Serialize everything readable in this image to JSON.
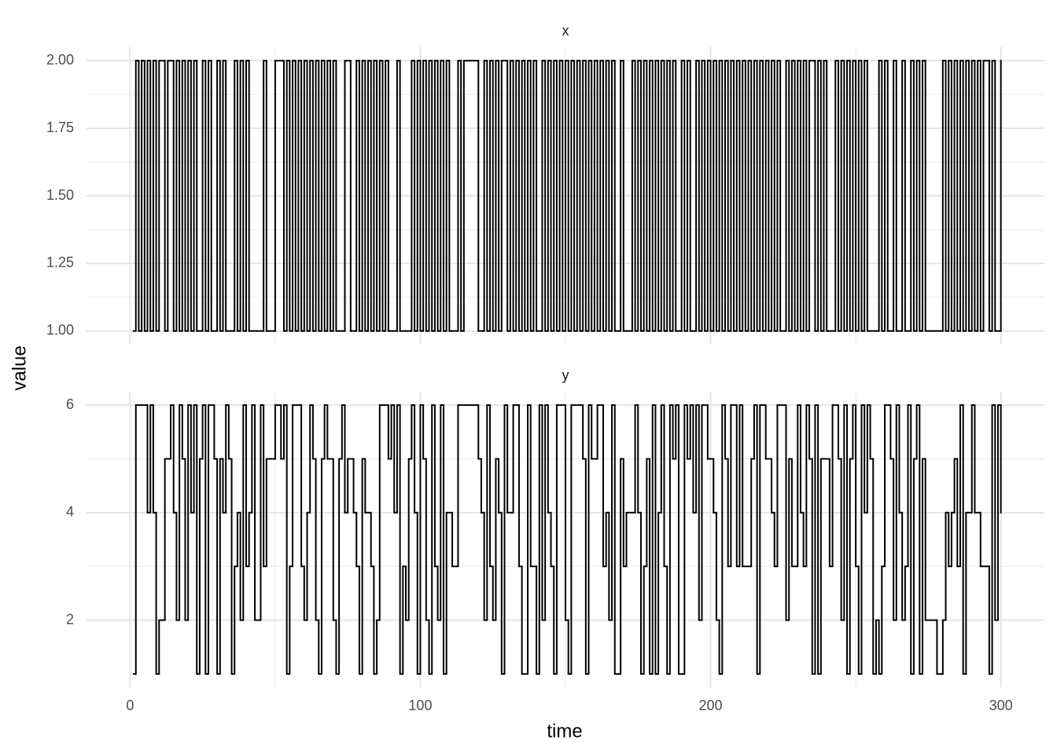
{
  "chart_data": {
    "type": "step",
    "xlabel": "time",
    "ylabel": "value",
    "color": "#000000",
    "grid": true,
    "x": [
      1,
      2,
      3,
      4,
      5,
      6,
      7,
      8,
      9,
      10,
      11,
      12,
      13,
      14,
      15,
      16,
      17,
      18,
      19,
      20,
      21,
      22,
      23,
      24,
      25,
      26,
      27,
      28,
      29,
      30,
      31,
      32,
      33,
      34,
      35,
      36,
      37,
      38,
      39,
      40,
      41,
      42,
      43,
      44,
      45,
      46,
      47,
      48,
      49,
      50,
      51,
      52,
      53,
      54,
      55,
      56,
      57,
      58,
      59,
      60,
      61,
      62,
      63,
      64,
      65,
      66,
      67,
      68,
      69,
      70,
      71,
      72,
      73,
      74,
      75,
      76,
      77,
      78,
      79,
      80,
      81,
      82,
      83,
      84,
      85,
      86,
      87,
      88,
      89,
      90,
      91,
      92,
      93,
      94,
      95,
      96,
      97,
      98,
      99,
      100,
      101,
      102,
      103,
      104,
      105,
      106,
      107,
      108,
      109,
      110,
      111,
      112,
      113,
      114,
      115,
      116,
      117,
      118,
      119,
      120,
      121,
      122,
      123,
      124,
      125,
      126,
      127,
      128,
      129,
      130,
      131,
      132,
      133,
      134,
      135,
      136,
      137,
      138,
      139,
      140,
      141,
      142,
      143,
      144,
      145,
      146,
      147,
      148,
      149,
      150,
      151,
      152,
      153,
      154,
      155,
      156,
      157,
      158,
      159,
      160,
      161,
      162,
      163,
      164,
      165,
      166,
      167,
      168,
      169,
      170,
      171,
      172,
      173,
      174,
      175,
      176,
      177,
      178,
      179,
      180,
      181,
      182,
      183,
      184,
      185,
      186,
      187,
      188,
      189,
      190,
      191,
      192,
      193,
      194,
      195,
      196,
      197,
      198,
      199,
      200,
      201,
      202,
      203,
      204,
      205,
      206,
      207,
      208,
      209,
      210,
      211,
      212,
      213,
      214,
      215,
      216,
      217,
      218,
      219,
      220,
      221,
      222,
      223,
      224,
      225,
      226,
      227,
      228,
      229,
      230,
      231,
      232,
      233,
      234,
      235,
      236,
      237,
      238,
      239,
      240,
      241,
      242,
      243,
      244,
      245,
      246,
      247,
      248,
      249,
      250,
      251,
      252,
      253,
      254,
      255,
      256,
      257,
      258,
      259,
      260,
      261,
      262,
      263,
      264,
      265,
      266,
      267,
      268,
      269,
      270,
      271,
      272,
      273,
      274,
      275,
      276,
      277,
      278,
      279,
      280,
      281,
      282,
      283,
      284,
      285,
      286,
      287,
      288,
      289,
      290,
      291,
      292,
      293,
      294,
      295,
      296,
      297,
      298,
      299,
      300
    ],
    "xlim": [
      -15,
      315
    ],
    "xticks": [
      0,
      100,
      200,
      300
    ],
    "panels": [
      {
        "title": "x",
        "ylim": [
          0.95,
          2.05
        ],
        "yticks": [
          {
            "value": 1,
            "label": "1.00"
          },
          {
            "value": 1.25,
            "label": "1.25"
          },
          {
            "value": 1.5,
            "label": "1.50"
          },
          {
            "value": 1.75,
            "label": "1.75"
          },
          {
            "value": 2,
            "label": "2.00"
          }
        ],
        "values": [
          1,
          2,
          1,
          2,
          1,
          2,
          1,
          2,
          1,
          2,
          2,
          1,
          2,
          2,
          1,
          2,
          1,
          2,
          1,
          2,
          1,
          2,
          1,
          1,
          2,
          1,
          2,
          1,
          1,
          2,
          1,
          2,
          1,
          1,
          1,
          2,
          1,
          2,
          1,
          2,
          1,
          1,
          1,
          1,
          1,
          2,
          1,
          1,
          1,
          2,
          2,
          2,
          1,
          2,
          1,
          2,
          1,
          2,
          1,
          2,
          1,
          2,
          1,
          2,
          1,
          2,
          1,
          2,
          1,
          2,
          1,
          1,
          1,
          2,
          2,
          1,
          1,
          2,
          1,
          2,
          1,
          2,
          1,
          2,
          1,
          2,
          1,
          2,
          1,
          1,
          1,
          2,
          1,
          1,
          1,
          1,
          2,
          1,
          2,
          1,
          2,
          1,
          2,
          1,
          2,
          1,
          2,
          1,
          2,
          1,
          1,
          1,
          2,
          1,
          2,
          2,
          2,
          2,
          2,
          1,
          1,
          2,
          1,
          2,
          1,
          2,
          1,
          2,
          2,
          1,
          2,
          1,
          2,
          1,
          2,
          1,
          2,
          1,
          2,
          1,
          1,
          2,
          1,
          2,
          1,
          2,
          1,
          2,
          1,
          2,
          1,
          2,
          1,
          2,
          1,
          2,
          1,
          2,
          1,
          2,
          1,
          2,
          1,
          2,
          1,
          2,
          1,
          1,
          2,
          1,
          1,
          1,
          2,
          1,
          2,
          1,
          2,
          1,
          2,
          1,
          2,
          1,
          2,
          1,
          2,
          1,
          2,
          1,
          1,
          2,
          1,
          2,
          1,
          1,
          2,
          1,
          2,
          1,
          2,
          1,
          2,
          1,
          2,
          1,
          2,
          1,
          2,
          1,
          2,
          1,
          2,
          1,
          2,
          1,
          2,
          1,
          2,
          1,
          2,
          1,
          2,
          1,
          2,
          1,
          1,
          2,
          1,
          2,
          1,
          2,
          1,
          2,
          1,
          2,
          2,
          1,
          2,
          1,
          2,
          1,
          1,
          1,
          2,
          1,
          2,
          1,
          2,
          1,
          2,
          1,
          2,
          1,
          2,
          1,
          1,
          1,
          1,
          2,
          1,
          2,
          1,
          1,
          2,
          1,
          1,
          2,
          1,
          1,
          2,
          1,
          2,
          1,
          2,
          1,
          1,
          1,
          1,
          1,
          1,
          2,
          1,
          2,
          1,
          2,
          1,
          2,
          1,
          2,
          1,
          2,
          1,
          2,
          1,
          2,
          2,
          1,
          2,
          1,
          1,
          2
        ]
      },
      {
        "title": "y",
        "ylim": [
          0.75,
          6.25
        ],
        "yticks": [
          2,
          4,
          6
        ],
        "values": [
          1,
          6,
          6,
          6,
          6,
          4,
          6,
          4,
          1,
          2,
          2,
          5,
          5,
          6,
          4,
          2,
          6,
          5,
          2,
          6,
          4,
          6,
          1,
          5,
          6,
          1,
          6,
          6,
          5,
          1,
          5,
          4,
          6,
          5,
          1,
          3,
          4,
          2,
          6,
          3,
          4,
          6,
          2,
          2,
          6,
          3,
          5,
          5,
          5,
          6,
          6,
          5,
          6,
          1,
          3,
          6,
          6,
          6,
          3,
          2,
          4,
          6,
          5,
          2,
          1,
          5,
          6,
          5,
          5,
          2,
          1,
          5,
          6,
          4,
          5,
          5,
          4,
          3,
          1,
          5,
          4,
          4,
          3,
          1,
          2,
          6,
          6,
          6,
          5,
          6,
          4,
          6,
          1,
          3,
          2,
          5,
          6,
          4,
          1,
          6,
          5,
          2,
          1,
          6,
          3,
          2,
          6,
          1,
          4,
          4,
          3,
          3,
          6,
          6,
          6,
          6,
          6,
          6,
          6,
          5,
          4,
          2,
          6,
          3,
          2,
          5,
          4,
          1,
          6,
          4,
          4,
          6,
          6,
          3,
          1,
          1,
          6,
          3,
          3,
          1,
          6,
          2,
          6,
          4,
          3,
          1,
          6,
          6,
          6,
          2,
          1,
          6,
          6,
          6,
          6,
          5,
          1,
          6,
          5,
          5,
          6,
          6,
          3,
          4,
          2,
          6,
          1,
          1,
          5,
          3,
          4,
          4,
          4,
          6,
          4,
          1,
          3,
          5,
          1,
          6,
          1,
          4,
          6,
          3,
          1,
          6,
          5,
          6,
          1,
          1,
          6,
          5,
          6,
          4,
          6,
          2,
          6,
          6,
          5,
          5,
          4,
          2,
          1,
          6,
          5,
          3,
          6,
          6,
          3,
          6,
          3,
          3,
          3,
          5,
          6,
          1,
          6,
          6,
          5,
          5,
          4,
          3,
          6,
          6,
          6,
          2,
          5,
          3,
          3,
          6,
          4,
          3,
          6,
          5,
          1,
          6,
          1,
          5,
          5,
          5,
          3,
          6,
          6,
          5,
          2,
          6,
          1,
          5,
          6,
          3,
          1,
          6,
          4,
          6,
          5,
          1,
          2,
          1,
          3,
          6,
          6,
          5,
          2,
          6,
          4,
          2,
          3,
          6,
          1,
          5,
          6,
          1,
          5,
          2,
          2,
          2,
          2,
          1,
          1,
          2,
          4,
          3,
          4,
          5,
          3,
          6,
          1,
          4,
          4,
          6,
          4,
          4,
          3,
          3,
          3,
          1,
          6,
          2,
          6,
          4
        ]
      }
    ]
  }
}
